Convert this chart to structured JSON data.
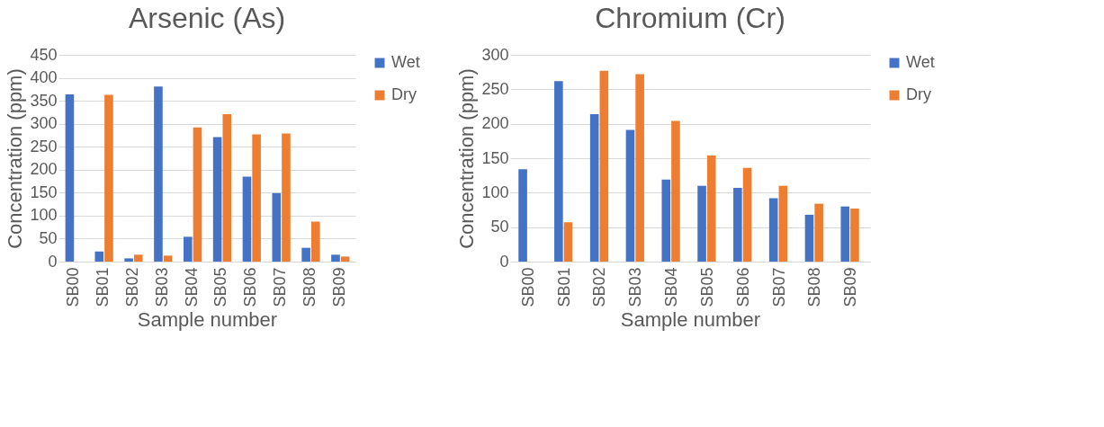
{
  "chart_data": [
    {
      "type": "bar",
      "title": "Arsenic (As)",
      "xlabel": "Sample number",
      "ylabel": "Concentration (ppm)",
      "categories": [
        "SB00",
        "SB01",
        "SB02",
        "SB03",
        "SB04",
        "SB05",
        "SB06",
        "SB07",
        "SB08",
        "SB09"
      ],
      "series": [
        {
          "name": "Wet",
          "color": "#4472c4",
          "values": [
            364,
            22,
            7,
            381,
            54,
            271,
            185,
            149,
            30,
            15
          ]
        },
        {
          "name": "Dry",
          "color": "#ed7d31",
          "values": [
            null,
            363,
            15,
            13,
            292,
            321,
            277,
            279,
            87,
            11
          ]
        }
      ],
      "ylim": [
        0,
        450
      ],
      "yticks": [
        0,
        50,
        100,
        150,
        200,
        250,
        300,
        350,
        400,
        450
      ],
      "grid": "y",
      "legend": "right"
    },
    {
      "type": "bar",
      "title": "Chromium (Cr)",
      "xlabel": "Sample number",
      "ylabel": "Concentration (ppm)",
      "categories": [
        "SB00",
        "SB01",
        "SB02",
        "SB03",
        "SB04",
        "SB05",
        "SB06",
        "SB07",
        "SB08",
        "SB09"
      ],
      "series": [
        {
          "name": "Wet",
          "color": "#4472c4",
          "values": [
            134,
            262,
            214,
            191,
            119,
            110,
            107,
            92,
            68,
            80
          ]
        },
        {
          "name": "Dry",
          "color": "#ed7d31",
          "values": [
            null,
            57,
            277,
            272,
            204,
            154,
            136,
            110,
            84,
            77
          ]
        }
      ],
      "ylim": [
        0,
        300
      ],
      "yticks": [
        0,
        50,
        100,
        150,
        200,
        250,
        300
      ],
      "grid": "y",
      "legend": "right"
    }
  ]
}
